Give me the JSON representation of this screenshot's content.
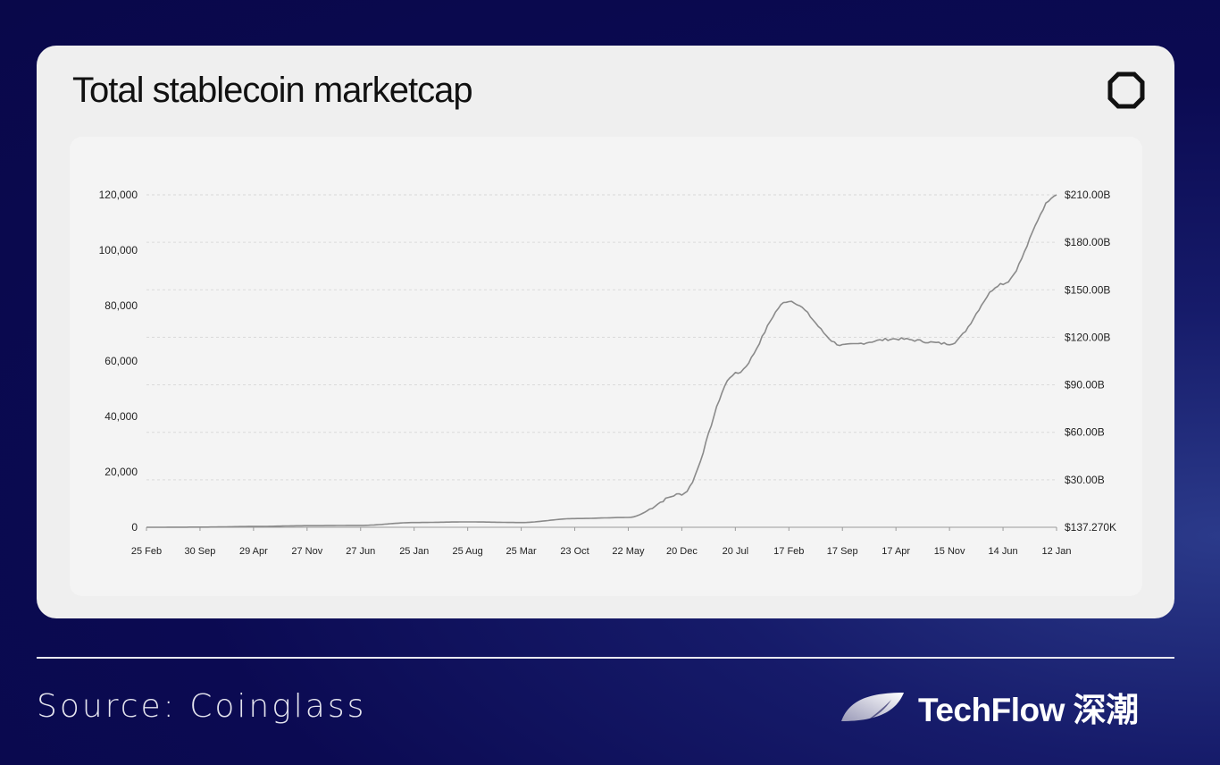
{
  "card": {
    "title": "Total stablecoin marketcap",
    "corner_icon": "octagon-logo-icon"
  },
  "footer": {
    "source": "Source: Coinglass",
    "brand": "TechFlow 深潮",
    "brand_icon": "techflow-wing-logo-icon"
  },
  "chart_data": {
    "type": "line",
    "title": "Total stablecoin marketcap",
    "x_tick_labels": [
      "25 Feb",
      "30 Sep",
      "29 Apr",
      "27 Nov",
      "27 Jun",
      "25 Jan",
      "25 Aug",
      "25 Mar",
      "23 Oct",
      "22 May",
      "20 Dec",
      "20 Jul",
      "17 Feb",
      "17 Sep",
      "17 Apr",
      "15 Nov",
      "14 Jun",
      "12 Jan"
    ],
    "left_axis_ticks": [
      "120,000",
      "100,000",
      "80,000",
      "60,000",
      "40,000",
      "20,000",
      "0"
    ],
    "right_axis_ticks": [
      "$210.00B",
      "$180.00B",
      "$150.00B",
      "$120.00B",
      "$90.00B",
      "$60.00B",
      "$30.00B",
      "$137.270K"
    ],
    "right_axis_values": [
      210,
      180,
      150,
      120,
      90,
      60,
      30,
      0
    ],
    "ylim_right": [
      0,
      210
    ],
    "grid": true,
    "line_color": "#8a8a8a",
    "series": [
      {
        "name": "",
        "x": [
          "25 Feb",
          "30 Sep",
          "29 Apr",
          "27 Nov",
          "27 Jun",
          "25 Jan",
          "25 Aug",
          "25 Mar",
          "23 Oct",
          "22 May",
          "20 Dec",
          "20 Jul",
          "17 Feb",
          "17 Sep",
          "17 Apr",
          "15 Nov",
          "14 Jun",
          "12 Jan"
        ],
        "values": [
          0,
          0.1,
          0.5,
          1,
          1.2,
          3,
          3.4,
          3,
          5.5,
          6.2,
          21,
          97,
          143,
          115,
          119,
          116,
          154,
          210
        ]
      }
    ]
  }
}
